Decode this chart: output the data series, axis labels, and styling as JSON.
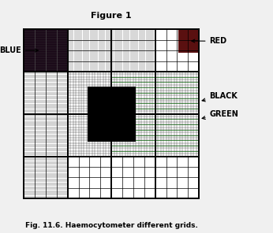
{
  "title": "Figure 1",
  "caption": "Fig. 11.6. Haemocytometer different grids.",
  "bg_color": "#f0f0f0",
  "label_blue": "BLUE",
  "label_red": "RED",
  "label_black": "BLACK",
  "label_green": "GREEN",
  "blue_fill": "#1a0818",
  "red_fill": "#5a1010",
  "black_fill": "#111111",
  "green_color": "#006400"
}
